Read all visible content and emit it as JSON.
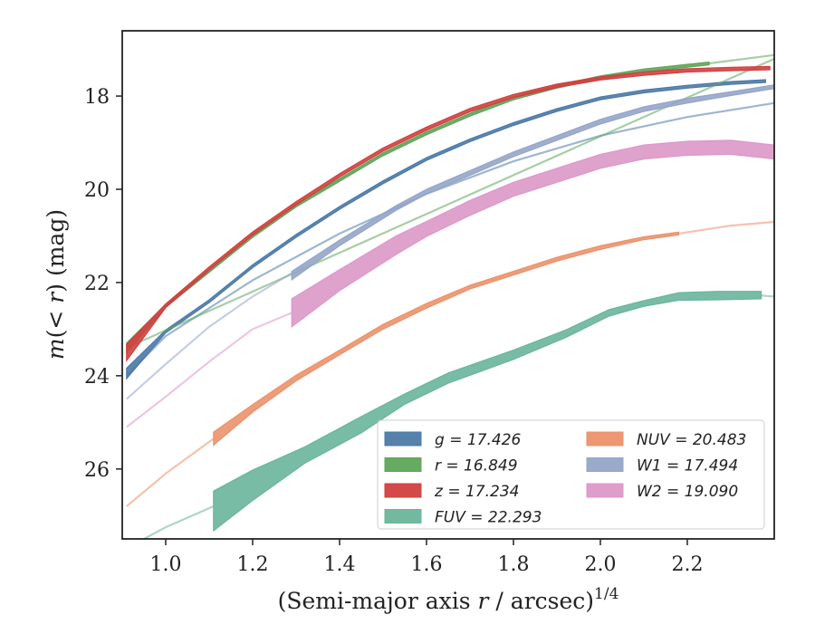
{
  "chart_data": {
    "type": "line",
    "xlabel": "(Semi-major axis r / arcsec)^{1/4}",
    "xlabel_main": "(Semi-major axis ",
    "xlabel_var": "r",
    "xlabel_tail": " / arcsec)",
    "xlabel_sup": "1/4",
    "ylabel": "m(<r) (mag)",
    "ylabel_m": "m",
    "ylabel_mid": "(< ",
    "ylabel_r": "r",
    "ylabel_tail": ") (mag)",
    "xlim": [
      0.9,
      2.4
    ],
    "ylim": [
      27.5,
      16.6
    ],
    "y_inverted": true,
    "grid": false,
    "legend_position": "lower-right",
    "x_ticks": [
      1.0,
      1.2,
      1.4,
      1.6,
      1.8,
      2.0,
      2.2
    ],
    "x_tick_labels": [
      "1.0",
      "1.2",
      "1.4",
      "1.6",
      "1.8",
      "2.0",
      "2.2"
    ],
    "y_ticks": [
      18,
      20,
      22,
      24,
      26
    ],
    "y_tick_labels": [
      "18",
      "20",
      "22",
      "24",
      "26"
    ],
    "series": [
      {
        "name": "g = 17.426",
        "band": "g",
        "total_mag": "17.426",
        "color": "#4c7aa7",
        "legend_label": "g = 17.426",
        "extrap": [
          [
            0.91,
            24.0
          ],
          [
            1.0,
            23.15
          ],
          [
            1.2,
            21.95
          ],
          [
            1.4,
            20.95
          ],
          [
            1.6,
            20.1
          ],
          [
            1.8,
            19.4
          ],
          [
            2.0,
            18.85
          ],
          [
            2.2,
            18.45
          ],
          [
            2.4,
            18.15
          ]
        ],
        "band_x": [
          0.91,
          1.0,
          1.1,
          1.2,
          1.3,
          1.4,
          1.5,
          1.6,
          1.7,
          1.8,
          1.9,
          2.0,
          2.1,
          2.2,
          2.3,
          2.38
        ],
        "band_y": [
          23.95,
          23.05,
          22.4,
          21.65,
          21.0,
          20.4,
          19.85,
          19.35,
          18.95,
          18.6,
          18.3,
          18.05,
          17.9,
          17.8,
          17.72,
          17.68
        ],
        "band_w": [
          0.22,
          0.06,
          0.06,
          0.06,
          0.06,
          0.06,
          0.06,
          0.06,
          0.06,
          0.06,
          0.06,
          0.06,
          0.06,
          0.06,
          0.06,
          0.06
        ]
      },
      {
        "name": "r = 16.849",
        "band": "r",
        "total_mag": "16.849",
        "color": "#5fa55a",
        "legend_label": "r = 16.849",
        "extrap": [
          [
            0.91,
            23.4
          ],
          [
            2.4,
            17.2
          ]
        ],
        "band_x": [
          0.91,
          1.0,
          1.1,
          1.2,
          1.3,
          1.4,
          1.5,
          1.6,
          1.7,
          1.8,
          1.9,
          2.0,
          2.1,
          2.25
        ],
        "band_y": [
          23.4,
          22.5,
          21.75,
          21.0,
          20.35,
          19.8,
          19.25,
          18.8,
          18.4,
          18.05,
          17.8,
          17.6,
          17.45,
          17.3
        ],
        "band_w": [
          0.2,
          0.06,
          0.06,
          0.06,
          0.06,
          0.06,
          0.06,
          0.06,
          0.06,
          0.06,
          0.06,
          0.06,
          0.06,
          0.06
        ],
        "tail": [
          [
            2.25,
            17.3
          ],
          [
            2.4,
            17.12
          ]
        ]
      },
      {
        "name": "z = 17.234",
        "band": "z",
        "total_mag": "17.234",
        "color": "#d1403f",
        "legend_label": "z = 17.234",
        "band_x": [
          0.91,
          1.0,
          1.1,
          1.2,
          1.3,
          1.4,
          1.5,
          1.6,
          1.7,
          1.8,
          1.9,
          2.0,
          2.1,
          2.2,
          2.3,
          2.39
        ],
        "band_y": [
          23.5,
          22.5,
          21.7,
          20.95,
          20.3,
          19.7,
          19.15,
          18.7,
          18.3,
          18.0,
          17.78,
          17.62,
          17.52,
          17.45,
          17.42,
          17.4
        ],
        "band_w": [
          0.35,
          0.08,
          0.07,
          0.07,
          0.07,
          0.07,
          0.07,
          0.07,
          0.07,
          0.07,
          0.07,
          0.07,
          0.07,
          0.07,
          0.07,
          0.07
        ]
      },
      {
        "name": "FUV = 22.293",
        "band": "FUV",
        "total_mag": "22.293",
        "color": "#6ab59b",
        "legend_label": "FUV = 22.293",
        "extrap": [
          [
            0.95,
            27.5
          ],
          [
            1.0,
            27.25
          ],
          [
            1.11,
            26.8
          ]
        ],
        "band_x": [
          1.11,
          1.2,
          1.32,
          1.45,
          1.55,
          1.65,
          1.8,
          1.92,
          2.02,
          2.1,
          2.18,
          2.27,
          2.37
        ],
        "band_y": [
          26.9,
          26.35,
          25.7,
          25.05,
          24.5,
          24.05,
          23.55,
          23.1,
          22.65,
          22.45,
          22.3,
          22.28,
          22.27
        ],
        "band_w": [
          0.85,
          0.65,
          0.35,
          0.35,
          0.22,
          0.22,
          0.2,
          0.16,
          0.14,
          0.12,
          0.16,
          0.18,
          0.16
        ],
        "tail": [
          [
            2.37,
            22.28
          ],
          [
            2.4,
            22.3
          ]
        ]
      },
      {
        "name": "NUV = 20.483",
        "band": "NUV",
        "total_mag": "20.483",
        "color": "#eb926b",
        "legend_label": "NUV = 20.483",
        "extrap": [
          [
            0.91,
            26.8
          ],
          [
            1.0,
            26.1
          ],
          [
            1.11,
            25.35
          ]
        ],
        "band_x": [
          1.11,
          1.2,
          1.3,
          1.4,
          1.5,
          1.6,
          1.7,
          1.8,
          1.9,
          2.0,
          2.1,
          2.18
        ],
        "band_y": [
          25.35,
          24.7,
          24.05,
          23.5,
          22.95,
          22.5,
          22.1,
          21.8,
          21.5,
          21.25,
          21.05,
          20.95
        ],
        "band_w": [
          0.28,
          0.16,
          0.12,
          0.1,
          0.1,
          0.1,
          0.08,
          0.08,
          0.08,
          0.08,
          0.06,
          0.06
        ],
        "tail": [
          [
            2.18,
            20.95
          ],
          [
            2.3,
            20.78
          ],
          [
            2.4,
            20.7
          ]
        ]
      },
      {
        "name": "W1 = 17.494",
        "band": "W1",
        "total_mag": "17.494",
        "color": "#95a5c8",
        "legend_label": "W1 = 17.494",
        "extrap": [
          [
            0.91,
            24.5
          ],
          [
            1.0,
            23.75
          ],
          [
            1.1,
            22.95
          ],
          [
            1.2,
            22.3
          ],
          [
            1.29,
            21.8
          ]
        ],
        "band_x": [
          1.29,
          1.4,
          1.53,
          1.6,
          1.7,
          1.8,
          1.9,
          2.0,
          2.1,
          2.2,
          2.3,
          2.4
        ],
        "band_y": [
          21.85,
          21.15,
          20.4,
          20.05,
          19.65,
          19.25,
          18.9,
          18.55,
          18.28,
          18.1,
          17.95,
          17.8
        ],
        "band_w": [
          0.18,
          0.12,
          0.1,
          0.1,
          0.1,
          0.1,
          0.1,
          0.1,
          0.1,
          0.1,
          0.08,
          0.08
        ]
      },
      {
        "name": "W2 = 19.090",
        "band": "W2",
        "total_mag": "19.090",
        "color": "#dc98c8",
        "legend_label": "W2 = 19.090",
        "extrap": [
          [
            0.91,
            25.1
          ],
          [
            1.0,
            24.45
          ],
          [
            1.1,
            23.7
          ],
          [
            1.2,
            23.0
          ],
          [
            1.29,
            22.65
          ]
        ],
        "band_x": [
          1.29,
          1.4,
          1.53,
          1.6,
          1.7,
          1.8,
          1.9,
          2.0,
          2.1,
          2.2,
          2.3,
          2.4
        ],
        "band_y": [
          22.65,
          21.95,
          21.2,
          20.85,
          20.4,
          20.0,
          19.7,
          19.4,
          19.2,
          19.12,
          19.1,
          19.2
        ],
        "band_w": [
          0.6,
          0.45,
          0.4,
          0.32,
          0.32,
          0.3,
          0.3,
          0.3,
          0.3,
          0.3,
          0.3,
          0.3
        ]
      }
    ],
    "legend_col1": [
      "g",
      "r",
      "z",
      "FUV"
    ],
    "legend_col2": [
      "NUV",
      "W1",
      "W2"
    ]
  }
}
